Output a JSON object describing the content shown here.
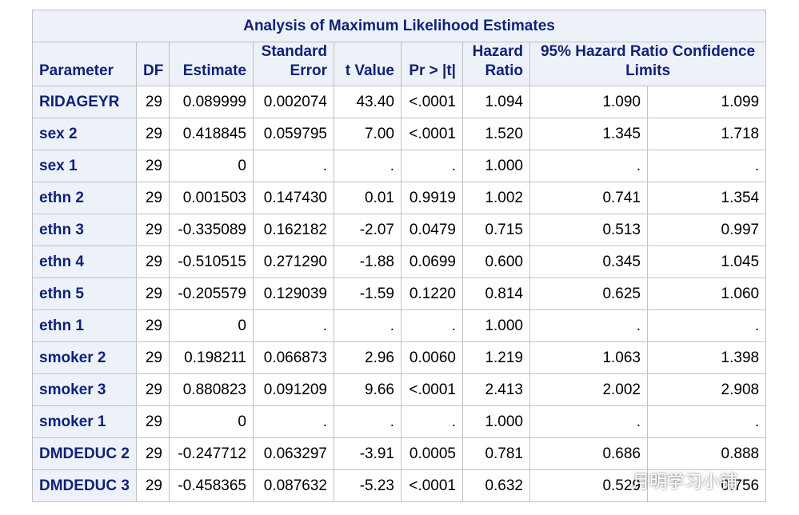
{
  "table": {
    "title": "Analysis of Maximum Likelihood Estimates",
    "headers": [
      "Parameter",
      "DF",
      "Estimate",
      "Standard Error",
      "t Value",
      "Pr > |t|",
      "Hazard Ratio",
      "95% Hazard Ratio Confidence Limits"
    ],
    "rows": [
      [
        "RIDAGEYR",
        "29",
        "0.089999",
        "0.002074",
        "43.40",
        "<.0001",
        "1.094",
        "1.090",
        "1.099"
      ],
      [
        "sex 2",
        "29",
        "0.418845",
        "0.059795",
        "7.00",
        "<.0001",
        "1.520",
        "1.345",
        "1.718"
      ],
      [
        "sex 1",
        "29",
        "0",
        ".",
        ".",
        ".",
        "1.000",
        ".",
        "."
      ],
      [
        "ethn 2",
        "29",
        "0.001503",
        "0.147430",
        "0.01",
        "0.9919",
        "1.002",
        "0.741",
        "1.354"
      ],
      [
        "ethn 3",
        "29",
        "-0.335089",
        "0.162182",
        "-2.07",
        "0.0479",
        "0.715",
        "0.513",
        "0.997"
      ],
      [
        "ethn 4",
        "29",
        "-0.510515",
        "0.271290",
        "-1.88",
        "0.0699",
        "0.600",
        "0.345",
        "1.045"
      ],
      [
        "ethn 5",
        "29",
        "-0.205579",
        "0.129039",
        "-1.59",
        "0.1220",
        "0.814",
        "0.625",
        "1.060"
      ],
      [
        "ethn 1",
        "29",
        "0",
        ".",
        ".",
        ".",
        "1.000",
        ".",
        "."
      ],
      [
        "smoker 2",
        "29",
        "0.198211",
        "0.066873",
        "2.96",
        "0.0060",
        "1.219",
        "1.063",
        "1.398"
      ],
      [
        "smoker 3",
        "29",
        "0.880823",
        "0.091209",
        "9.66",
        "<.0001",
        "2.413",
        "2.002",
        "2.908"
      ],
      [
        "smoker 1",
        "29",
        "0",
        ".",
        ".",
        ".",
        "1.000",
        ".",
        "."
      ],
      [
        "DMDEDUC 2",
        "29",
        "-0.247712",
        "0.063297",
        "-3.91",
        "0.0005",
        "0.781",
        "0.686",
        "0.888"
      ],
      [
        "DMDEDUC 3",
        "29",
        "-0.458365",
        "0.087632",
        "-5.23",
        "<.0001",
        "0.632",
        "0.529",
        "0.756"
      ]
    ]
  },
  "watermark": "月明学习小铺"
}
